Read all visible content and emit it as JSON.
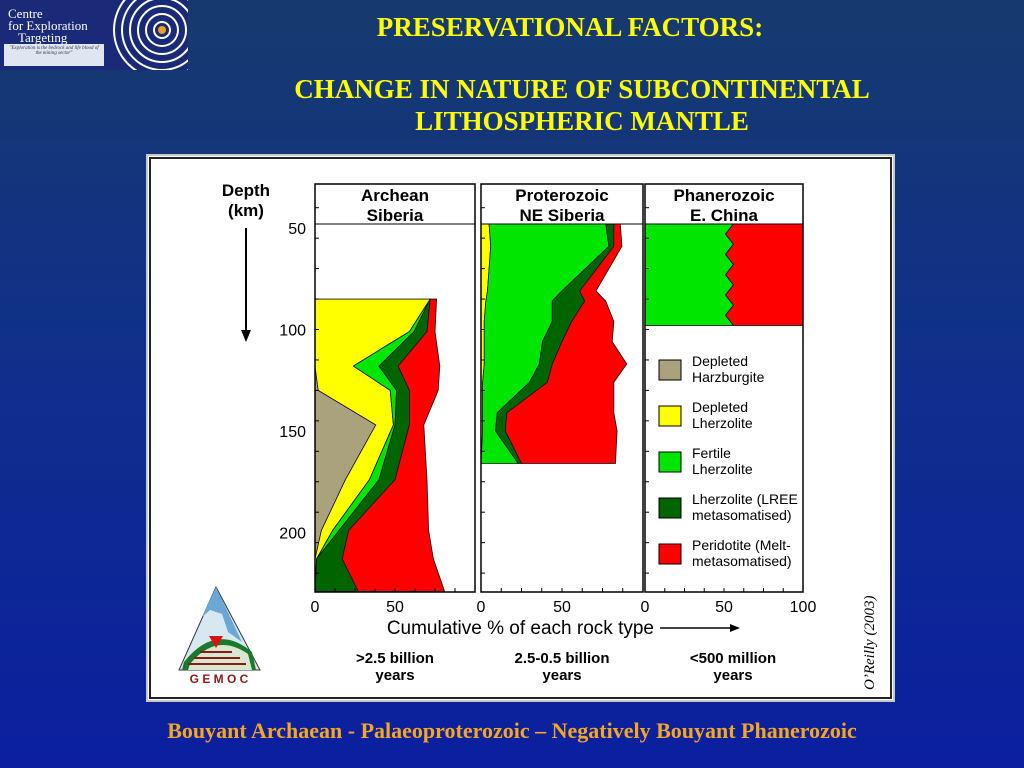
{
  "logo": {
    "line1": "Centre",
    "line2": "for Exploration",
    "line3": "Targeting",
    "quote": "\"Exploration is the bedrock and life blood of the mining sector\""
  },
  "title": {
    "line1": "PRESERVATIONAL FACTORS:",
    "line2": "CHANGE IN NATURE OF SUBCONTINENTAL",
    "line3": "LITHOSPHERIC MANTLE"
  },
  "footer": "Bouyant Archaean - Palaeoproterozoic – Negatively Bouyant Phanerozoic",
  "credit": "O’Reilly (2003)",
  "gemoc": "G E M O C",
  "chart_data": {
    "type": "area",
    "ylabel_line1": "Depth",
    "ylabel_line2": "(km)",
    "yticks": [
      "50",
      "100",
      "150",
      "200"
    ],
    "ylim": [
      28,
      229
    ],
    "xlabel": "Cumulative % of each rock type",
    "xticks": [
      "0",
      "50",
      "100"
    ],
    "colors": {
      "Depleted Harzburgite": "#a9a27c",
      "Depleted Lherzolite": "#ffff00",
      "Fertile Lherzolite": "#00e600",
      "Lherzolite (LREE metasomatised)": "#006400",
      "Peridotite (Melt-metasomatised)": "#ff0000"
    },
    "legend": [
      {
        "l1": "Depleted",
        "l2": "Harzburgite"
      },
      {
        "l1": "Depleted",
        "l2": "Lherzolite"
      },
      {
        "l1": "Fertile",
        "l2": "Lherzolite"
      },
      {
        "l1": "Lherzolite (LREE",
        "l2": "metasomatised)"
      },
      {
        "l1": "Peridotite (Melt-",
        "l2": "metasomatised)"
      }
    ],
    "series_names": [
      "Depleted Harzburgite",
      "Depleted Lherzolite",
      "Fertile Lherzolite",
      "Lherzolite (LREE metasomatised)",
      "Peridotite (Melt-metasomatised)"
    ],
    "panels": [
      {
        "title1": "Archean",
        "title2": "Siberia",
        "age1": ">2.5 billion",
        "age2": "years",
        "depth": [
          85,
          101,
          118,
          130,
          147,
          174,
          199,
          213,
          229
        ],
        "cumulative": [
          [
            0,
            0,
            0,
            2,
            38,
            19,
            4,
            0,
            0
          ],
          [
            72,
            59,
            24,
            47,
            49,
            34,
            11,
            1,
            0
          ],
          [
            72,
            62,
            40,
            51,
            50,
            40,
            15,
            1,
            0
          ],
          [
            72,
            70,
            52,
            59,
            59,
            50,
            21,
            17,
            27
          ],
          [
            76,
            75,
            78,
            77,
            68,
            70,
            71,
            74,
            81
          ]
        ]
      },
      {
        "title1": "Proterozoic",
        "title2": "NE Siberia",
        "age1": "2.5-0.5 billion",
        "age2": "years",
        "depth": [
          48,
          59,
          81,
          86,
          96,
          106,
          117,
          126,
          141,
          150,
          166
        ],
        "cumulative": [
          [
            0,
            0,
            0,
            0,
            0,
            0,
            0,
            0,
            0,
            0,
            0
          ],
          [
            5,
            6,
            4,
            3,
            2,
            2,
            2,
            1,
            1,
            1,
            0
          ],
          [
            77,
            79,
            50,
            44,
            44,
            38,
            36,
            30,
            10,
            9,
            23
          ],
          [
            82,
            82,
            61,
            64,
            56,
            50,
            44,
            41,
            16,
            15,
            25
          ],
          [
            86,
            87,
            71,
            77,
            82,
            81,
            90,
            82,
            82,
            84,
            83
          ]
        ]
      },
      {
        "title1": "Phanerozoic",
        "title2": "E. China",
        "age1": "<500 million",
        "age2": "years",
        "depth": [
          48,
          53,
          58,
          63,
          68,
          73,
          78,
          83,
          88,
          93,
          98
        ],
        "cumulative": [
          [
            0,
            0,
            0,
            0,
            0,
            0,
            0,
            0,
            0,
            0,
            0
          ],
          [
            0,
            0,
            0,
            0,
            0,
            0,
            0,
            0,
            0,
            0,
            0
          ],
          [
            56,
            51,
            56,
            51,
            56,
            51,
            56,
            51,
            56,
            51,
            56
          ],
          [
            56,
            51,
            56,
            51,
            56,
            51,
            56,
            51,
            56,
            51,
            56
          ],
          [
            100,
            100,
            100,
            100,
            100,
            100,
            100,
            100,
            100,
            100,
            100
          ]
        ]
      }
    ]
  }
}
